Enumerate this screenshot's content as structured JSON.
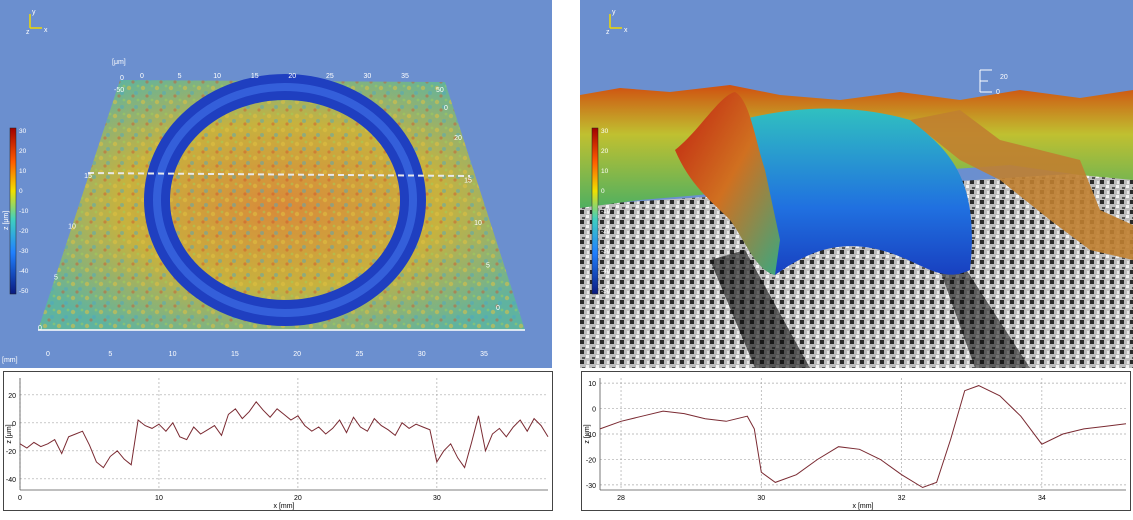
{
  "left_view": {
    "axis_triad": {
      "y": "y",
      "z": "z",
      "x": "x"
    },
    "unit_top": "[μm]",
    "unit_bottom": "[mm]",
    "colorbar": {
      "label": "z [μm]",
      "ticks": [
        "30",
        "20",
        "10",
        "0",
        "-10",
        "-20",
        "-30",
        "-40",
        "-50"
      ]
    },
    "top_ticks": [
      "0",
      "5",
      "10",
      "15",
      "20",
      "25",
      "30",
      "35"
    ],
    "bottom_ticks": [
      "0",
      "5",
      "10",
      "15",
      "20",
      "25",
      "30",
      "35"
    ],
    "left_ticks": [
      "0",
      "5",
      "10",
      "15"
    ],
    "right_ticks": [
      "0",
      "5",
      "10",
      "15",
      "20"
    ],
    "top_scale": [
      "0",
      "-50"
    ],
    "right_scale": [
      "50",
      "0"
    ],
    "colors": {
      "background": "#6B8FCF",
      "ring": "#1f3fc0",
      "surface": "#c9c040"
    }
  },
  "right_view": {
    "axis_triad": {
      "y": "y",
      "z": "z",
      "x": "x"
    },
    "scale_ticks": [
      "20",
      "0"
    ],
    "colorbar": {
      "ticks": [
        "30",
        "20",
        "10",
        "0",
        "-10",
        "-20",
        "-30",
        "-40",
        "-50"
      ]
    },
    "colors": {
      "background": "#6B8FCF"
    }
  },
  "chart_data": [
    {
      "type": "line",
      "xlabel": "x [mm]",
      "ylabel": "z [μm]",
      "xlim": [
        0,
        38
      ],
      "ylim": [
        -48,
        32
      ],
      "xticks": [
        0,
        10,
        20,
        30
      ],
      "yticks": [
        20,
        0,
        -20,
        -40
      ],
      "grid": true,
      "x": [
        0,
        0.5,
        1,
        1.5,
        2,
        2.5,
        3,
        3.5,
        4,
        4.5,
        5,
        5.5,
        6,
        6.5,
        7,
        7.5,
        8,
        8.5,
        9,
        9.5,
        10,
        10.5,
        11,
        11.5,
        12,
        12.5,
        13,
        13.5,
        14,
        14.5,
        15,
        15.5,
        16,
        16.5,
        17,
        17.5,
        18,
        18.5,
        19,
        19.5,
        20,
        20.5,
        21,
        21.5,
        22,
        22.5,
        23,
        23.5,
        24,
        24.5,
        25,
        25.5,
        26,
        26.5,
        27,
        27.5,
        28,
        28.5,
        29,
        29.5,
        30,
        30.5,
        31,
        31.5,
        32,
        32.5,
        33,
        33.5,
        34,
        34.5,
        35,
        35.5,
        36,
        36.5,
        37,
        37.5,
        38
      ],
      "y": [
        -15,
        -18,
        -14,
        -17,
        -15,
        -12,
        -22,
        -10,
        -8,
        -6,
        -16,
        -28,
        -32,
        -24,
        -20,
        -26,
        -30,
        2,
        -2,
        -4,
        -1,
        -6,
        0,
        -10,
        -12,
        -3,
        -8,
        -5,
        -2,
        -9,
        6,
        10,
        3,
        8,
        15,
        9,
        4,
        10,
        6,
        2,
        5,
        -2,
        -6,
        -3,
        -8,
        -4,
        2,
        -7,
        4,
        -3,
        -6,
        3,
        -2,
        -5,
        -9,
        0,
        -4,
        -1,
        -3,
        -5,
        -28,
        -20,
        -15,
        -25,
        -32,
        -14,
        5,
        -20,
        -8,
        -4,
        -10,
        -3,
        2,
        -6,
        3,
        -2,
        -10
      ]
    },
    {
      "type": "line",
      "xlabel": "x [mm]",
      "ylabel": "z [μm]",
      "xlim": [
        27.7,
        35.2
      ],
      "ylim": [
        -32,
        12
      ],
      "xticks": [
        28,
        30,
        32,
        34
      ],
      "yticks": [
        10,
        0,
        -10,
        -20,
        -30
      ],
      "grid": true,
      "x": [
        27.7,
        28,
        28.3,
        28.6,
        28.9,
        29.2,
        29.5,
        29.8,
        29.9,
        30,
        30.2,
        30.5,
        30.8,
        31.1,
        31.4,
        31.7,
        32,
        32.3,
        32.5,
        32.7,
        32.9,
        33.1,
        33.4,
        33.7,
        34,
        34.3,
        34.6,
        34.9,
        35.2
      ],
      "y": [
        -8,
        -5,
        -3,
        -1,
        -2,
        -4,
        -5,
        -3,
        -8,
        -25,
        -29,
        -26,
        -20,
        -15,
        -16,
        -20,
        -26,
        -31,
        -29,
        -12,
        7,
        9,
        5,
        -3,
        -14,
        -10,
        -8,
        -7,
        -6
      ]
    }
  ]
}
